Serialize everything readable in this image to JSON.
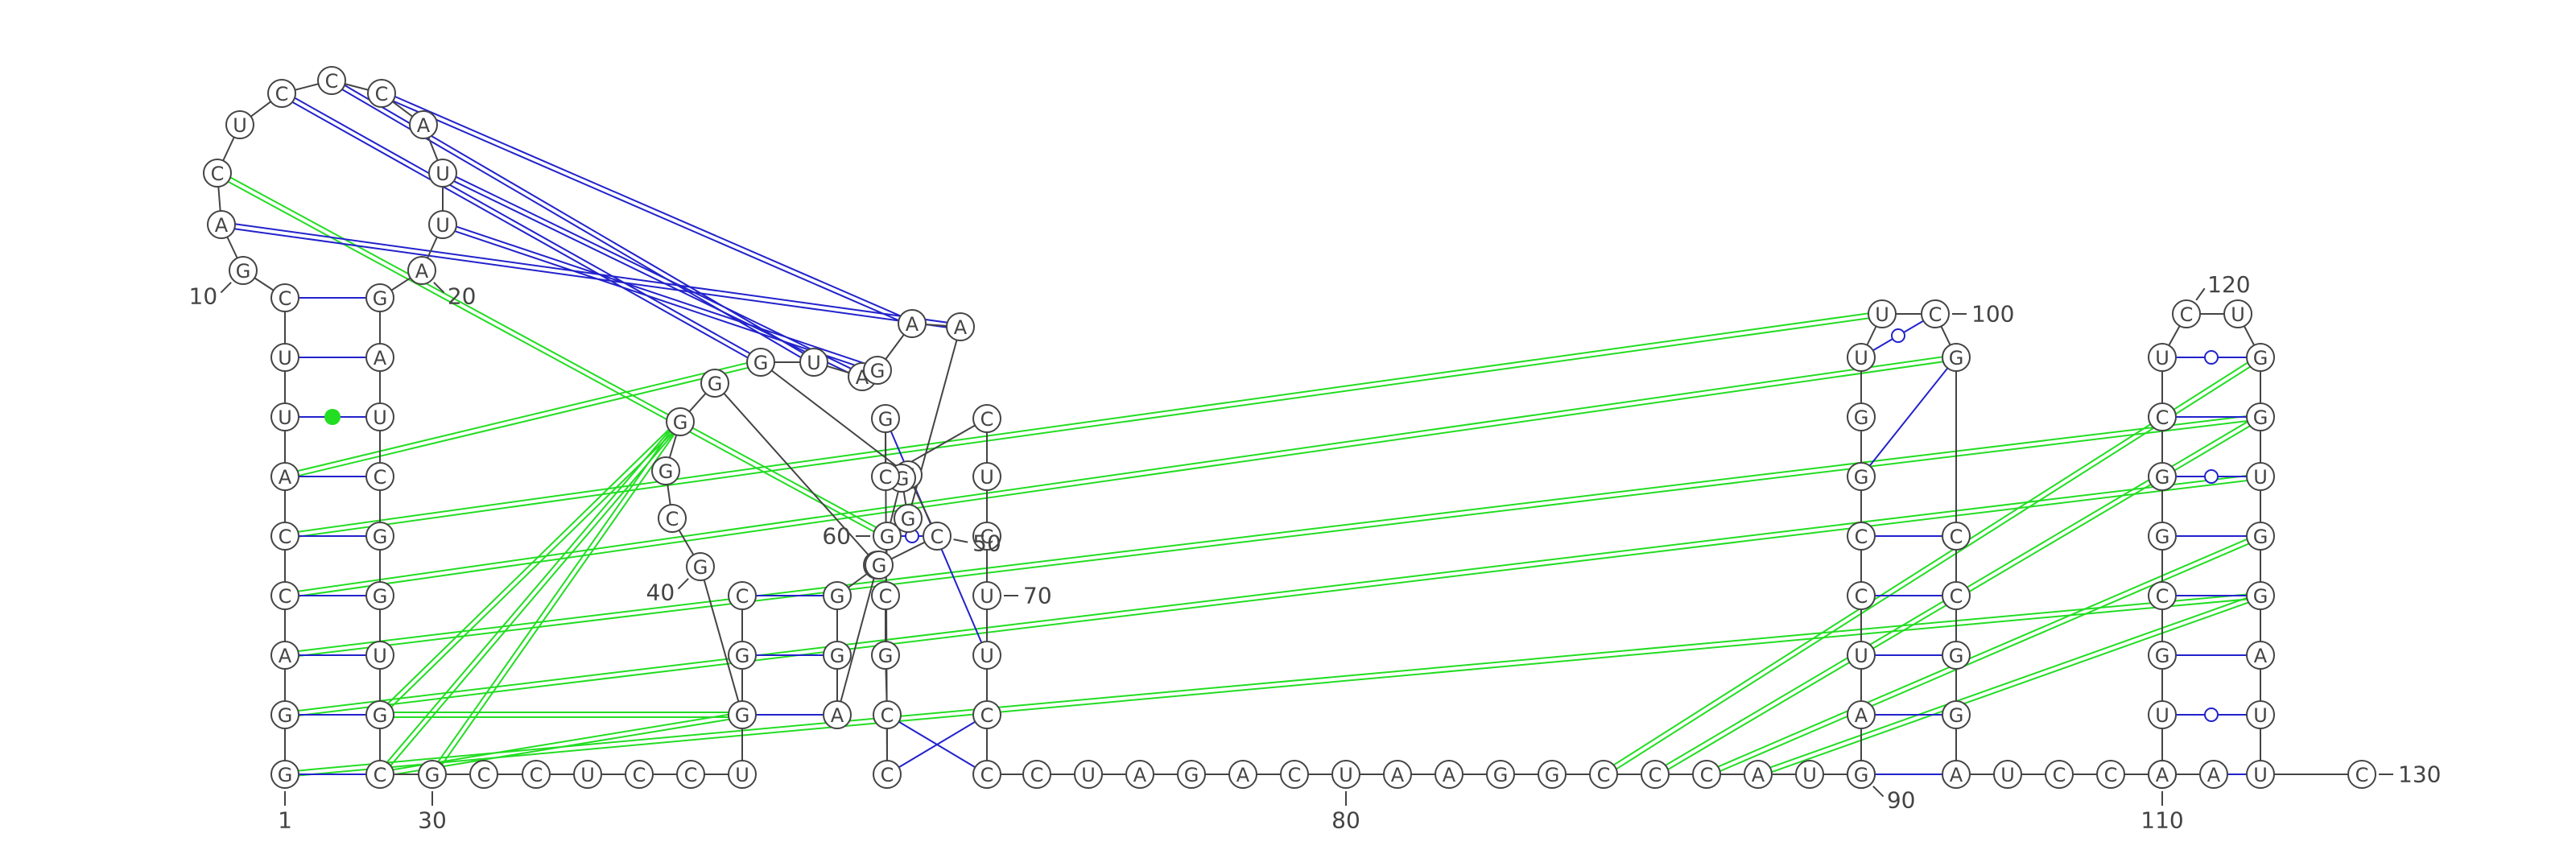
{
  "colors": {
    "backbone": "#444444",
    "canonical_pair": "#2222cc",
    "wobble_pair": "#2222cc",
    "tertiary_interaction": "#22dd22",
    "noncanonical_marker": "#22dd22"
  },
  "nucleotides": [
    {
      "n": 1,
      "b": "G"
    },
    {
      "n": 2,
      "b": "G"
    },
    {
      "n": 3,
      "b": "A"
    },
    {
      "n": 4,
      "b": "C"
    },
    {
      "n": 5,
      "b": "C"
    },
    {
      "n": 6,
      "b": "A"
    },
    {
      "n": 7,
      "b": "U"
    },
    {
      "n": 8,
      "b": "U"
    },
    {
      "n": 9,
      "b": "C"
    },
    {
      "n": 10,
      "b": "G"
    },
    {
      "n": 11,
      "b": "A"
    },
    {
      "n": 12,
      "b": "C"
    },
    {
      "n": 13,
      "b": "U"
    },
    {
      "n": 14,
      "b": "C"
    },
    {
      "n": 15,
      "b": "C"
    },
    {
      "n": 16,
      "b": "C"
    },
    {
      "n": 17,
      "b": "A"
    },
    {
      "n": 18,
      "b": "U"
    },
    {
      "n": 19,
      "b": "U"
    },
    {
      "n": 20,
      "b": "A"
    },
    {
      "n": 21,
      "b": "G"
    },
    {
      "n": 22,
      "b": "A"
    },
    {
      "n": 23,
      "b": "U"
    },
    {
      "n": 24,
      "b": "C"
    },
    {
      "n": 25,
      "b": "G"
    },
    {
      "n": 26,
      "b": "G"
    },
    {
      "n": 27,
      "b": "U"
    },
    {
      "n": 28,
      "b": "G"
    },
    {
      "n": 29,
      "b": "C"
    },
    {
      "n": 30,
      "b": "G"
    },
    {
      "n": 31,
      "b": "C"
    },
    {
      "n": 32,
      "b": "C"
    },
    {
      "n": 33,
      "b": "U"
    },
    {
      "n": 34,
      "b": "C"
    },
    {
      "n": 35,
      "b": "C"
    },
    {
      "n": 36,
      "b": "U"
    },
    {
      "n": 37,
      "b": "C"
    },
    {
      "n": 38,
      "b": "G"
    },
    {
      "n": 39,
      "b": "G"
    },
    {
      "n": 40,
      "b": "G"
    },
    {
      "n": 41,
      "b": "C"
    },
    {
      "n": 42,
      "b": "G"
    },
    {
      "n": 43,
      "b": "G"
    },
    {
      "n": 44,
      "b": "G"
    },
    {
      "n": 45,
      "b": "G"
    },
    {
      "n": 46,
      "b": "A"
    },
    {
      "n": 47,
      "b": "G"
    },
    {
      "n": 48,
      "b": "G"
    },
    {
      "n": 49,
      "b": "G"
    },
    {
      "n": 50,
      "b": "C"
    },
    {
      "n": 51,
      "b": "U"
    },
    {
      "n": 52,
      "b": "G"
    },
    {
      "n": 53,
      "b": "U"
    },
    {
      "n": 54,
      "b": "A"
    },
    {
      "n": 55,
      "b": "G"
    },
    {
      "n": 56,
      "b": "A"
    },
    {
      "n": 57,
      "b": "A"
    },
    {
      "n": 58,
      "b": "G"
    },
    {
      "n": 59,
      "b": "G"
    },
    {
      "n": 60,
      "b": "G"
    },
    {
      "n": 61,
      "b": "C"
    },
    {
      "n": 62,
      "b": "G"
    },
    {
      "n": 63,
      "b": "C"
    },
    {
      "n": 64,
      "b": "C"
    },
    {
      "n": 65,
      "b": "G"
    },
    {
      "n": 66,
      "b": "C"
    },
    {
      "n": 67,
      "b": "C"
    },
    {
      "n": 68,
      "b": "U"
    },
    {
      "n": 69,
      "b": "C"
    },
    {
      "n": 70,
      "b": "U"
    },
    {
      "n": 71,
      "b": "U"
    },
    {
      "n": 72,
      "b": "C"
    },
    {
      "n": 73,
      "b": "C"
    },
    {
      "n": 74,
      "b": "C"
    },
    {
      "n": 75,
      "b": "U"
    },
    {
      "n": 76,
      "b": "A"
    },
    {
      "n": 77,
      "b": "G"
    },
    {
      "n": 78,
      "b": "A"
    },
    {
      "n": 79,
      "b": "C"
    },
    {
      "n": 80,
      "b": "U"
    },
    {
      "n": 81,
      "b": "A"
    },
    {
      "n": 82,
      "b": "A"
    },
    {
      "n": 83,
      "b": "G"
    },
    {
      "n": 84,
      "b": "G"
    },
    {
      "n": 85,
      "b": "C"
    },
    {
      "n": 86,
      "b": "C"
    },
    {
      "n": 87,
      "b": "C"
    },
    {
      "n": 88,
      "b": "A"
    },
    {
      "n": 89,
      "b": "U"
    },
    {
      "n": 90,
      "b": "C"
    },
    {
      "n": 91,
      "b": "G"
    },
    {
      "n": 92,
      "b": "A"
    },
    {
      "n": 93,
      "b": "U"
    },
    {
      "n": 94,
      "b": "C"
    },
    {
      "n": 95,
      "b": "C"
    },
    {
      "n": 96,
      "b": "G"
    },
    {
      "n": 97,
      "b": "G"
    },
    {
      "n": 98,
      "b": "U"
    },
    {
      "n": 99,
      "b": "U"
    },
    {
      "n": 100,
      "b": "C"
    },
    {
      "n": 101,
      "b": "G"
    },
    {
      "n": 102,
      "b": "C"
    },
    {
      "n": 103,
      "b": "C"
    },
    {
      "n": 104,
      "b": "G"
    },
    {
      "n": 105,
      "b": "G"
    },
    {
      "n": 106,
      "b": "A"
    },
    {
      "n": 107,
      "b": "U"
    },
    {
      "n": 108,
      "b": "C"
    },
    {
      "n": 109,
      "b": "C"
    },
    {
      "n": 110,
      "b": "A"
    },
    {
      "n": 111,
      "b": "A"
    },
    {
      "n": 112,
      "b": "A"
    },
    {
      "n": 113,
      "b": "U"
    },
    {
      "n": 114,
      "b": "G"
    },
    {
      "n": 115,
      "b": "C"
    },
    {
      "n": 116,
      "b": "G"
    },
    {
      "n": 117,
      "b": "G"
    },
    {
      "n": 118,
      "b": "C"
    },
    {
      "n": 119,
      "b": "U"
    },
    {
      "n": 120,
      "b": "C"
    },
    {
      "n": 121,
      "b": "U"
    },
    {
      "n": 122,
      "b": "G"
    },
    {
      "n": 123,
      "b": "G"
    },
    {
      "n": 124,
      "b": "U"
    },
    {
      "n": 125,
      "b": "G"
    },
    {
      "n": 126,
      "b": "G"
    },
    {
      "n": 127,
      "b": "A"
    },
    {
      "n": 128,
      "b": "U"
    },
    {
      "n": 129,
      "b": "U"
    },
    {
      "n": 130,
      "b": "C"
    }
  ],
  "number_labels": [
    "1",
    "10",
    "20",
    "30",
    "40",
    "50",
    "60",
    "70",
    "80",
    "90",
    "100",
    "110",
    "120",
    "130"
  ],
  "base_pairs": [
    {
      "i": 1,
      "j": 29,
      "type": "canonical"
    },
    {
      "i": 2,
      "j": 28,
      "type": "canonical"
    },
    {
      "i": 3,
      "j": 27,
      "type": "canonical"
    },
    {
      "i": 4,
      "j": 26,
      "type": "canonical"
    },
    {
      "i": 5,
      "j": 25,
      "type": "canonical"
    },
    {
      "i": 6,
      "j": 24,
      "type": "canonical"
    },
    {
      "i": 7,
      "j": 23,
      "type": "noncanonical"
    },
    {
      "i": 8,
      "j": 22,
      "type": "canonical"
    },
    {
      "i": 9,
      "j": 21,
      "type": "canonical"
    },
    {
      "i": 37,
      "j": 48,
      "type": "canonical"
    },
    {
      "i": 38,
      "j": 47,
      "type": "canonical"
    },
    {
      "i": 39,
      "j": 46,
      "type": "canonical"
    },
    {
      "i": 60,
      "j": 50,
      "type": "wobble"
    },
    {
      "i": 63,
      "j": 73,
      "type": "canonical"
    },
    {
      "i": 64,
      "j": 72,
      "type": "canonical"
    },
    {
      "i": 65,
      "j": 71,
      "type": "canonical"
    },
    {
      "i": 67,
      "j": 68,
      "type": "canonical"
    },
    {
      "i": 91,
      "j": 106,
      "type": "canonical"
    },
    {
      "i": 92,
      "j": 105,
      "type": "canonical"
    },
    {
      "i": 93,
      "j": 104,
      "type": "canonical"
    },
    {
      "i": 94,
      "j": 103,
      "type": "canonical"
    },
    {
      "i": 95,
      "j": 102,
      "type": "canonical"
    },
    {
      "i": 96,
      "j": 101,
      "type": "canonical"
    },
    {
      "i": 98,
      "j": 100,
      "type": "wobble"
    },
    {
      "i": 112,
      "j": 129,
      "type": "canonical"
    },
    {
      "i": 113,
      "j": 128,
      "type": "wobble"
    },
    {
      "i": 114,
      "j": 127,
      "type": "canonical"
    },
    {
      "i": 115,
      "j": 126,
      "type": "canonical"
    },
    {
      "i": 116,
      "j": 125,
      "type": "canonical"
    },
    {
      "i": 117,
      "j": 124,
      "type": "wobble"
    },
    {
      "i": 118,
      "j": 123,
      "type": "canonical"
    },
    {
      "i": 119,
      "j": 122,
      "type": "wobble"
    }
  ],
  "pseudoknot_pairs": [
    {
      "i": 14,
      "j": 52
    },
    {
      "i": 15,
      "j": 53
    },
    {
      "i": 18,
      "j": 54
    },
    {
      "i": 19,
      "j": 55
    },
    {
      "i": 16,
      "j": 56
    },
    {
      "i": 11,
      "j": 57
    }
  ],
  "tertiary_interactions": [
    {
      "i": 5,
      "j": 99
    },
    {
      "i": 4,
      "j": 101
    },
    {
      "i": 3,
      "j": 123
    },
    {
      "i": 2,
      "j": 124
    },
    {
      "i": 1,
      "j": 126
    },
    {
      "i": 6,
      "j": 52
    },
    {
      "i": 28,
      "j": 43
    },
    {
      "i": 29,
      "j": 43
    },
    {
      "i": 30,
      "j": 43
    },
    {
      "i": 28,
      "j": 39
    },
    {
      "i": 29,
      "j": 39
    },
    {
      "i": 85,
      "j": 122
    },
    {
      "i": 86,
      "j": 123
    },
    {
      "i": 87,
      "j": 125
    },
    {
      "i": 88,
      "j": 126
    },
    {
      "i": 12,
      "j": 60
    }
  ]
}
